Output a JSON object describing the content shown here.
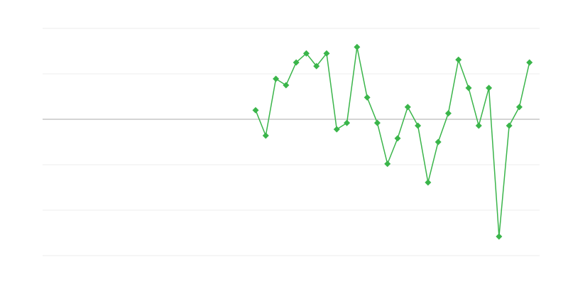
{
  "chart_data": {
    "type": "line",
    "title": "",
    "xlabel": "",
    "ylabel": "",
    "x_slots": 50,
    "x": [
      21,
      22,
      23,
      24,
      25,
      26,
      27,
      28,
      29,
      30,
      31,
      32,
      33,
      34,
      35,
      36,
      37,
      38,
      39,
      40,
      41,
      42,
      43,
      44,
      45,
      46,
      47,
      48
    ],
    "series": [
      {
        "values": [
          0.2,
          -0.36,
          0.89,
          0.75,
          1.25,
          1.45,
          1.17,
          1.45,
          -0.22,
          -0.08,
          1.59,
          0.48,
          -0.08,
          -0.98,
          -0.42,
          0.27,
          -0.14,
          -1.39,
          -0.5,
          0.13,
          1.31,
          0.69,
          -0.14,
          0.69,
          -2.58,
          -0.14,
          0.27,
          1.25
        ],
        "color": "#3ab54a",
        "marker": "diamond"
      }
    ],
    "ylim": [
      -3,
      2
    ],
    "yticks": [
      -3,
      -2,
      -1,
      0,
      1,
      2
    ],
    "grid": true,
    "zero_line_color": "#aaaaaa",
    "grid_color": "#eeeeee",
    "legend": "none"
  }
}
